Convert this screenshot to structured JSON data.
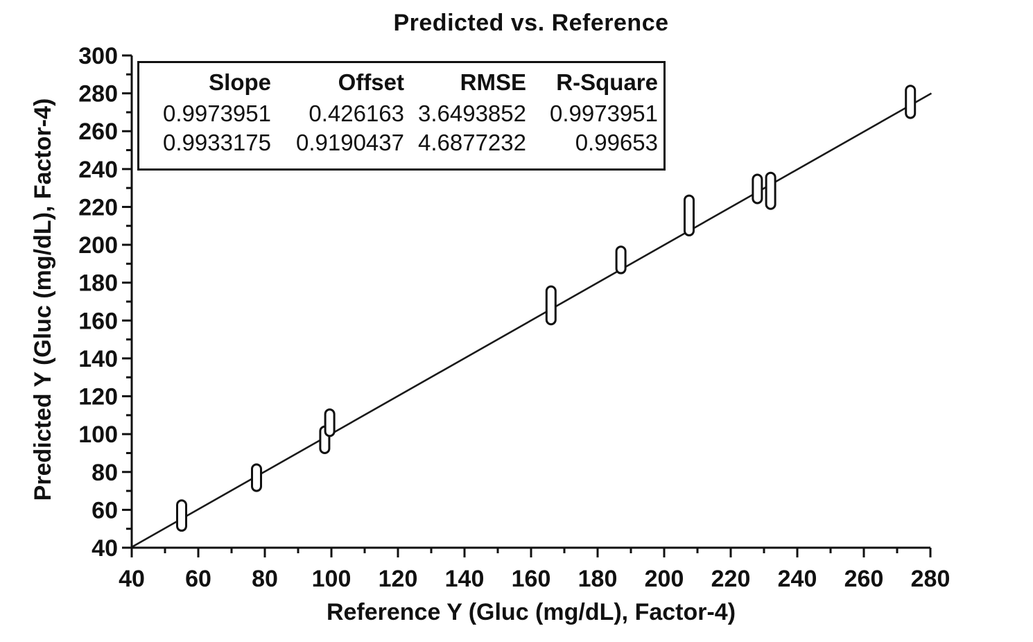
{
  "title": "Predicted vs. Reference",
  "stats_table": {
    "headers": [
      "Slope",
      "Offset",
      "RMSE",
      "R-Square"
    ],
    "rows": [
      [
        "0.9973951",
        "0.426163",
        "3.6493852",
        "0.9973951"
      ],
      [
        "0.9933175",
        "0.9190437",
        "4.6877232",
        "0.99653"
      ]
    ]
  },
  "chart_data": {
    "type": "scatter",
    "title": "Predicted vs. Reference",
    "xlabel": "Reference Y (Gluc (mg/dL), Factor-4)",
    "ylabel": "Predicted Y (Gluc (mg/dL), Factor-4)",
    "xlim": [
      40,
      280
    ],
    "ylim": [
      40,
      300
    ],
    "x_major_step": 20,
    "x_minor_step": 10,
    "y_major_step": 20,
    "y_minor_step": 10,
    "x_tick_labels": [
      "40",
      "60",
      "80",
      "100",
      "120",
      "140",
      "160",
      "180",
      "200",
      "220",
      "240",
      "260",
      "280"
    ],
    "y_tick_labels": [
      "40",
      "60",
      "80",
      "100",
      "120",
      "140",
      "160",
      "180",
      "200",
      "220",
      "240",
      "260",
      "280",
      "300"
    ],
    "grid": false,
    "legend": "none",
    "marker_style": "vertical-capsule-outline",
    "points": [
      {
        "ref": 55,
        "pred": 57,
        "pred_low": 49,
        "pred_high": 65
      },
      {
        "ref": 77.5,
        "pred": 76.5,
        "pred_low": 70,
        "pred_high": 84
      },
      {
        "ref": 98,
        "pred": 97,
        "pred_low": 90,
        "pred_high": 104
      },
      {
        "ref": 99.5,
        "pred": 106,
        "pred_low": 99,
        "pred_high": 113
      },
      {
        "ref": 166,
        "pred": 168,
        "pred_low": 158,
        "pred_high": 178
      },
      {
        "ref": 187,
        "pred": 192,
        "pred_low": 185,
        "pred_high": 199
      },
      {
        "ref": 207.5,
        "pred": 216,
        "pred_low": 205,
        "pred_high": 226
      },
      {
        "ref": 228,
        "pred": 230,
        "pred_low": 222,
        "pred_high": 237
      },
      {
        "ref": 232,
        "pred": 228.5,
        "pred_low": 219,
        "pred_high": 238
      },
      {
        "ref": 274,
        "pred": 275.5,
        "pred_low": 267,
        "pred_high": 284
      }
    ],
    "fit_line": {
      "slope": 0.9973951,
      "offset": 0.426163,
      "x_start": 40,
      "x_end": 280.3
    },
    "colors": {
      "axis": "#111111",
      "line": "#1a1a1a",
      "marker_stroke": "#111111",
      "marker_fill": "#ffffff",
      "background": "#ffffff",
      "text": "#111111"
    }
  }
}
